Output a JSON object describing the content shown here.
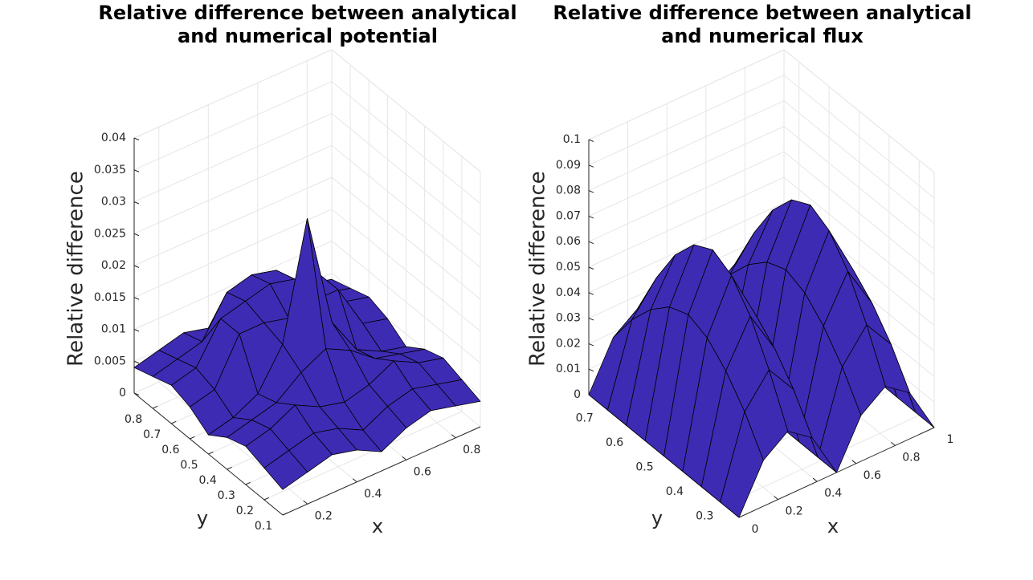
{
  "chart_data": [
    {
      "type": "surface",
      "title": "Relative difference between analytical\nand numerical potential",
      "x_label": "x",
      "y_label": "y",
      "z_label": "Relative difference",
      "color": "#3e2bb3",
      "grid": true,
      "xlim": [
        0.1,
        0.9
      ],
      "ylim": [
        0.1,
        0.9
      ],
      "zlim": [
        0,
        0.04
      ],
      "xticks": [
        0.2,
        0.4,
        0.6,
        0.8
      ],
      "yticks": [
        0.1,
        0.2,
        0.3,
        0.4,
        0.5,
        0.6,
        0.7,
        0.8
      ],
      "zticks": [
        0,
        0.005,
        0.01,
        0.015,
        0.02,
        0.025,
        0.03,
        0.035,
        0.04
      ],
      "x": [
        0.1,
        0.2,
        0.3,
        0.4,
        0.5,
        0.6,
        0.7,
        0.8,
        0.9
      ],
      "y": [
        0.1,
        0.2,
        0.3,
        0.4,
        0.5,
        0.6,
        0.7,
        0.8,
        0.9
      ],
      "z": [
        [
          0.004,
          0.005,
          0.006,
          0.005,
          0.003,
          0.005,
          0.006,
          0.005,
          0.004
        ],
        [
          0.005,
          0.006,
          0.007,
          0.006,
          0.004,
          0.006,
          0.007,
          0.006,
          0.005
        ],
        [
          0.006,
          0.007,
          0.009,
          0.007,
          0.006,
          0.007,
          0.009,
          0.007,
          0.006
        ],
        [
          0.005,
          0.006,
          0.007,
          0.01,
          0.012,
          0.01,
          0.007,
          0.006,
          0.005
        ],
        [
          0.003,
          0.004,
          0.006,
          0.012,
          0.03,
          0.012,
          0.006,
          0.004,
          0.003
        ],
        [
          0.005,
          0.006,
          0.013,
          0.013,
          0.012,
          0.013,
          0.013,
          0.006,
          0.005
        ],
        [
          0.006,
          0.007,
          0.013,
          0.014,
          0.015,
          0.014,
          0.013,
          0.007,
          0.006
        ],
        [
          0.005,
          0.006,
          0.007,
          0.013,
          0.014,
          0.013,
          0.007,
          0.006,
          0.005
        ],
        [
          0.004,
          0.005,
          0.006,
          0.005,
          0.003,
          0.005,
          0.006,
          0.005,
          0.004
        ]
      ]
    },
    {
      "type": "surface",
      "title": "Relative difference between analytical\nand numerical flux",
      "x_label": "x",
      "y_label": "y",
      "z_label": "Relative difference",
      "color": "#3e2bb3",
      "grid": true,
      "xlim": [
        0,
        1
      ],
      "ylim": [
        0.25,
        0.75
      ],
      "zlim": [
        0,
        0.1
      ],
      "xticks": [
        0,
        0.2,
        0.4,
        0.6,
        0.8,
        1
      ],
      "yticks": [
        0.3,
        0.4,
        0.5,
        0.6,
        0.7
      ],
      "zticks": [
        0,
        0.01,
        0.02,
        0.03,
        0.04,
        0.05,
        0.06,
        0.07,
        0.08,
        0.09,
        0.1
      ],
      "x": [
        0,
        0.125,
        0.25,
        0.375,
        0.5,
        0.625,
        0.75,
        0.875,
        1
      ],
      "y": [
        0.25,
        0.3125,
        0.375,
        0.4375,
        0.5,
        0.5625,
        0.625,
        0.6875,
        0.75
      ],
      "z": [
        [
          0,
          0.018,
          0.025,
          0.018,
          0,
          0.018,
          0.025,
          0.018,
          0
        ],
        [
          0,
          0.031,
          0.043,
          0.031,
          0,
          0.031,
          0.043,
          0.031,
          0
        ],
        [
          0,
          0.041,
          0.058,
          0.041,
          0,
          0.041,
          0.058,
          0.041,
          0
        ],
        [
          0,
          0.048,
          0.068,
          0.048,
          0,
          0.048,
          0.068,
          0.048,
          0
        ],
        [
          0,
          0.051,
          0.072,
          0.051,
          0,
          0.051,
          0.072,
          0.051,
          0
        ],
        [
          0,
          0.048,
          0.068,
          0.048,
          0,
          0.048,
          0.068,
          0.048,
          0
        ],
        [
          0,
          0.041,
          0.058,
          0.041,
          0,
          0.041,
          0.058,
          0.041,
          0
        ],
        [
          0,
          0.031,
          0.043,
          0.031,
          0,
          0.031,
          0.043,
          0.031,
          0
        ],
        [
          0,
          0.018,
          0.025,
          0.018,
          0,
          0.018,
          0.025,
          0.018,
          0
        ]
      ]
    }
  ]
}
